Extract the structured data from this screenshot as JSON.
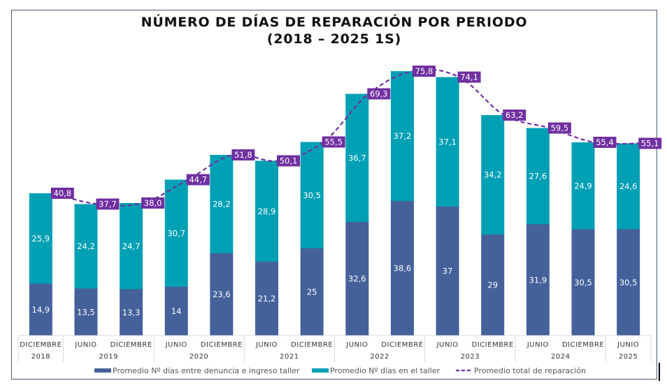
{
  "chart_data": {
    "type": "bar",
    "stacked": true,
    "title_line1": "NÚMERO DE DÍAS DE REPARACIÓN POR PERIODO",
    "title_line2": "(2018 – 2025 1S)",
    "categories": [
      "DICIEMBRE",
      "JUNIO",
      "DICIEMBRE",
      "JUNIO",
      "DICIEMBRE",
      "JUNIO",
      "DICIEMBRE",
      "JUNIO",
      "DICIEMBRE",
      "JUNIO",
      "DICIEMBRE",
      "JUNIO",
      "DICIEMBRE",
      "JUNIO"
    ],
    "year_groups": [
      {
        "label": "2018",
        "span": 1
      },
      {
        "label": "2019",
        "span": 2
      },
      {
        "label": "2020",
        "span": 2
      },
      {
        "label": "2021",
        "span": 2
      },
      {
        "label": "2022",
        "span": 2
      },
      {
        "label": "2023",
        "span": 2
      },
      {
        "label": "2024",
        "span": 2
      },
      {
        "label": "2025",
        "span": 1
      }
    ],
    "series": [
      {
        "name": "Promedio Nº días entre denuncia e ingreso taller",
        "type": "bar",
        "color": "#44619a",
        "values": [
          14.9,
          13.5,
          13.3,
          14,
          23.6,
          21.2,
          25,
          32.6,
          38.6,
          37,
          29,
          31.9,
          30.5,
          30.5
        ],
        "labels": [
          "14,9",
          "13,5",
          "13,3",
          "14",
          "23,6",
          "21,2",
          "25",
          "32,6",
          "38,6",
          "37",
          "29",
          "31,9",
          "30,5",
          "30,5"
        ]
      },
      {
        "name": "Promedio Nº días en el taller",
        "type": "bar",
        "color": "#00a0b4",
        "values": [
          25.9,
          24.2,
          24.7,
          30.7,
          28.2,
          28.9,
          30.5,
          36.7,
          37.2,
          37.1,
          34.2,
          27.6,
          24.9,
          24.6
        ],
        "labels": [
          "25,9",
          "24,2",
          "24,7",
          "30,7",
          "28,2",
          "28,9",
          "30,5",
          "36,7",
          "37,2",
          "37,1",
          "34,2",
          "27,6",
          "24,9",
          "24,6"
        ]
      },
      {
        "name": "Promedio total de reparación",
        "type": "line",
        "style": "dashed",
        "color": "#7030a0",
        "values": [
          40.8,
          37.7,
          38.0,
          44.7,
          51.8,
          50.1,
          55.5,
          69.3,
          75.8,
          74.1,
          63.2,
          59.5,
          55.4,
          55.1
        ],
        "labels": [
          "40,8",
          "37,7",
          "38,0",
          "44,7",
          "51,8",
          "50,1",
          "55,5",
          "69,3",
          "75,8",
          "74,1",
          "63,2",
          "59,5",
          "55,4",
          "55,1"
        ]
      }
    ],
    "ylim": [
      0,
      80
    ],
    "y_axis_visible": false,
    "grid": false,
    "legend_position": "bottom"
  }
}
